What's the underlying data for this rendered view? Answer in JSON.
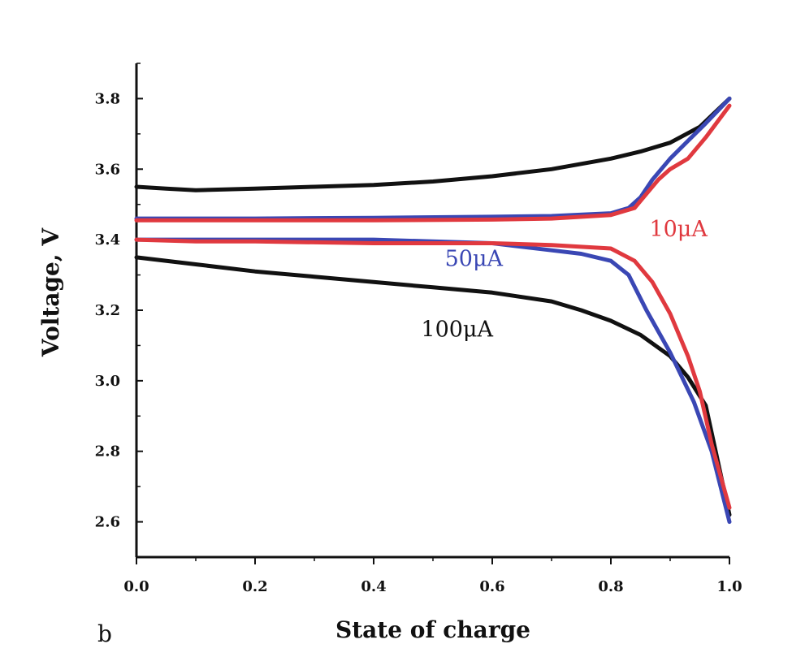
{
  "chart_data": {
    "type": "line",
    "panel_label": "b",
    "xlabel": "State of charge",
    "ylabel": "Voltage, V",
    "xlim": [
      0.0,
      1.0
    ],
    "ylim": [
      2.5,
      3.9
    ],
    "xticks": [
      "0.0",
      "0.2",
      "0.4",
      "0.6",
      "0.8",
      "1.0"
    ],
    "yticks": [
      "2.6",
      "2.8",
      "3.0",
      "3.2",
      "3.4",
      "3.6",
      "3.8"
    ],
    "grid": false,
    "series": [
      {
        "name": "100μA",
        "color": "#111111",
        "charge": {
          "x": [
            0.0,
            0.05,
            0.1,
            0.2,
            0.3,
            0.4,
            0.5,
            0.6,
            0.7,
            0.8,
            0.85,
            0.9,
            0.95,
            1.0
          ],
          "y": [
            3.55,
            3.545,
            3.54,
            3.545,
            3.55,
            3.555,
            3.565,
            3.58,
            3.6,
            3.63,
            3.65,
            3.675,
            3.72,
            3.8
          ]
        },
        "discharge": {
          "x": [
            0.0,
            0.1,
            0.2,
            0.3,
            0.4,
            0.5,
            0.6,
            0.7,
            0.75,
            0.8,
            0.85,
            0.9,
            0.93,
            0.96,
            1.0
          ],
          "y": [
            3.35,
            3.33,
            3.31,
            3.295,
            3.28,
            3.265,
            3.25,
            3.225,
            3.2,
            3.17,
            3.13,
            3.07,
            3.01,
            2.93,
            2.62
          ]
        }
      },
      {
        "name": "50μA",
        "color": "#3a47b4",
        "charge": {
          "x": [
            0.0,
            0.1,
            0.2,
            0.4,
            0.6,
            0.7,
            0.8,
            0.83,
            0.85,
            0.87,
            0.9,
            0.93,
            0.96,
            1.0
          ],
          "y": [
            3.46,
            3.46,
            3.46,
            3.462,
            3.465,
            3.467,
            3.475,
            3.49,
            3.52,
            3.57,
            3.63,
            3.68,
            3.73,
            3.8
          ]
        },
        "discharge": {
          "x": [
            0.0,
            0.1,
            0.2,
            0.4,
            0.6,
            0.7,
            0.75,
            0.8,
            0.83,
            0.86,
            0.9,
            0.94,
            0.97,
            1.0
          ],
          "y": [
            3.4,
            3.4,
            3.4,
            3.4,
            3.39,
            3.37,
            3.36,
            3.34,
            3.3,
            3.2,
            3.08,
            2.94,
            2.8,
            2.6
          ]
        }
      },
      {
        "name": "10μA",
        "color": "#e0393f",
        "charge": {
          "x": [
            0.0,
            0.1,
            0.2,
            0.4,
            0.6,
            0.7,
            0.8,
            0.84,
            0.86,
            0.88,
            0.9,
            0.93,
            0.96,
            1.0
          ],
          "y": [
            3.455,
            3.455,
            3.455,
            3.455,
            3.457,
            3.46,
            3.47,
            3.49,
            3.53,
            3.57,
            3.6,
            3.63,
            3.69,
            3.78
          ]
        },
        "discharge": {
          "x": [
            0.0,
            0.1,
            0.2,
            0.4,
            0.6,
            0.7,
            0.8,
            0.84,
            0.87,
            0.9,
            0.93,
            0.95,
            0.97,
            1.0
          ],
          "y": [
            3.4,
            3.395,
            3.395,
            3.39,
            3.39,
            3.385,
            3.375,
            3.34,
            3.28,
            3.19,
            3.07,
            2.97,
            2.82,
            2.64
          ]
        }
      }
    ],
    "annotations": [
      {
        "text": "10μA",
        "color": "#e0393f",
        "at": [
          0.865,
          3.41
        ]
      },
      {
        "text": "50μA",
        "color": "#3a47b4",
        "at": [
          0.52,
          3.325
        ]
      },
      {
        "text": "100μA",
        "color": "#111111",
        "at": [
          0.48,
          3.125
        ]
      }
    ]
  }
}
